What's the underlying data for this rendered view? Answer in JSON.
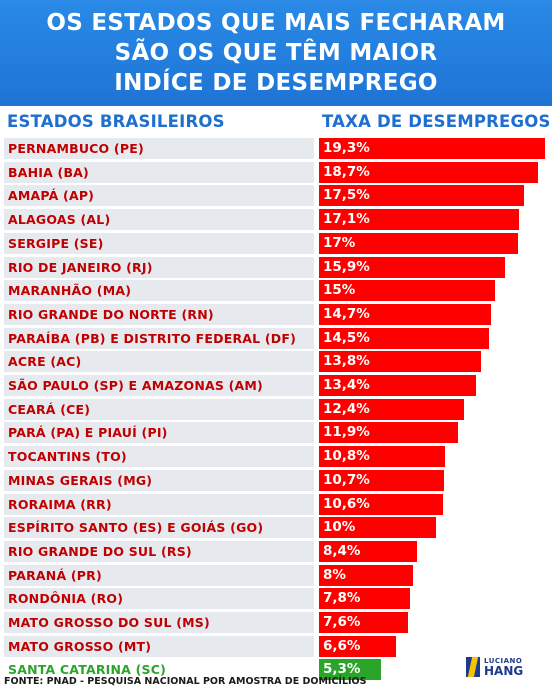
{
  "header": {
    "line1": "OS ESTADOS QUE MAIS FECHARAM",
    "line2": "SÃO OS QUE TÊM MAIOR",
    "line3": "INDÍCE DE DESEMPREGO"
  },
  "columns": {
    "left": "ESTADOS BRASILEIROS",
    "right": "TAXA DE DESEMPREGOS"
  },
  "colors": {
    "header_bg": "#1e74d6",
    "bar": "#ff0000",
    "highlight_bar": "#2aa52a",
    "label_text": "#c00000",
    "highlight_text": "#2aa52a"
  },
  "chart_data": {
    "type": "bar",
    "orientation": "horizontal",
    "title": "OS ESTADOS QUE MAIS FECHARAM SÃO OS QUE TÊM MAIOR INDÍCE DE DESEMPREGO",
    "xlabel": "TAXA DE DESEMPREGOS",
    "ylabel": "ESTADOS BRASILEIROS",
    "xlim": [
      0,
      19.3
    ],
    "grid": false,
    "categories": [
      "PERNAMBUCO (PE)",
      "BAHIA (BA)",
      "AMAPÁ (AP)",
      "ALAGOAS (AL)",
      "SERGIPE (SE)",
      "RIO DE JANEIRO (RJ)",
      "MARANHÃO (MA)",
      "RIO GRANDE DO NORTE (RN)",
      "PARAÍBA  (PB) E DISTRITO FEDERAL (DF)",
      "ACRE (AC)",
      "SÃO PAULO (SP) E AMAZONAS (AM)",
      "CEARÁ (CE)",
      "PARÁ (PA) E PIAUÍ (PI)",
      "TOCANTINS (TO)",
      "MINAS GERAIS (MG)",
      "RORAIMA (RR)",
      "ESPÍRITO SANTO (ES) E GOIÁS (GO)",
      "RIO GRANDE DO SUL (RS)",
      "PARANÁ (PR)",
      "RONDÔNIA (RO)",
      "MATO GROSSO DO SUL (MS)",
      "MATO GROSSO (MT)",
      "SANTA CATARINA (SC)"
    ],
    "values": [
      19.3,
      18.7,
      17.5,
      17.1,
      17,
      15.9,
      15,
      14.7,
      14.5,
      13.8,
      13.4,
      12.4,
      11.9,
      10.8,
      10.7,
      10.6,
      10,
      8.4,
      8,
      7.8,
      7.6,
      6.6,
      5.3
    ],
    "value_labels": [
      "19,3%",
      "18,7%",
      "17,5%",
      "17,1%",
      "17%",
      "15,9%",
      "15%",
      "14,7%",
      "14,5%",
      "13,8%",
      "13,4%",
      "12,4%",
      "11,9%",
      "10,8%",
      "10,7%",
      "10,6%",
      "10%",
      "8,4%",
      "8%",
      "7,8%",
      "7,6%",
      "6,6%",
      "5,3%"
    ],
    "highlight_index": 22
  },
  "footer": {
    "source": "FONTE: PNAD - PESQUISA NACIONAL POR AMOSTRA DE DOMICÍLIOS"
  },
  "logo": {
    "line1": "LUCIANO",
    "line2": "HANG"
  }
}
